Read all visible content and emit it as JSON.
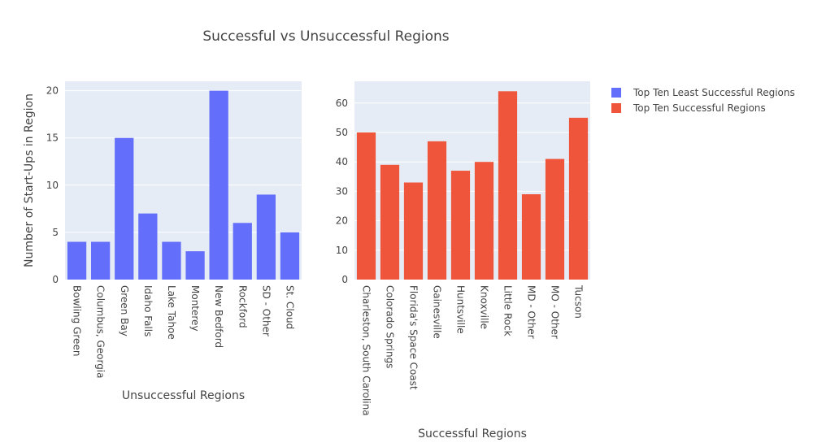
{
  "chart_title": "Successful vs Unsuccessful Regions",
  "chart_data": [
    {
      "type": "bar",
      "name": "Top Ten Least Successful Regions",
      "color": "#636efa",
      "categories": [
        "Bowling Green",
        "Columbus, Georgia",
        "Green Bay",
        "Idaho Falls",
        "Lake Tahoe",
        "Monterey",
        "New Bedford",
        "Rockford",
        "SD - Other",
        "St. Cloud"
      ],
      "values": [
        4,
        4,
        15,
        7,
        4,
        3,
        20,
        6,
        9,
        5
      ],
      "xlabel": "Unsuccessful Regions",
      "ylabel": "Number of Start-Ups in Region",
      "ylim": [
        0,
        21
      ],
      "yticks": [
        0,
        5,
        10,
        15,
        20
      ]
    },
    {
      "type": "bar",
      "name": "Top Ten Successful Regions",
      "color": "#ef553b",
      "categories": [
        "Charleston, South Carolina",
        "Colorado Springs",
        "Florida's Space Coast",
        "Gainesville",
        "Huntsville",
        "Knoxville",
        "Little Rock",
        "MD - Other",
        "MO - Other",
        "Tucson"
      ],
      "values": [
        50,
        39,
        33,
        47,
        37,
        40,
        64,
        29,
        41,
        55
      ],
      "xlabel": "Successful Regions",
      "ylabel": "",
      "ylim": [
        0,
        67.4
      ],
      "yticks": [
        0,
        10,
        20,
        30,
        40,
        50,
        60
      ]
    }
  ],
  "legend": {
    "position": "top-right",
    "items": [
      "Top Ten Least Successful Regions",
      "Top Ten Successful Regions"
    ]
  },
  "plot_background": "#e5ecf6",
  "grid": true
}
